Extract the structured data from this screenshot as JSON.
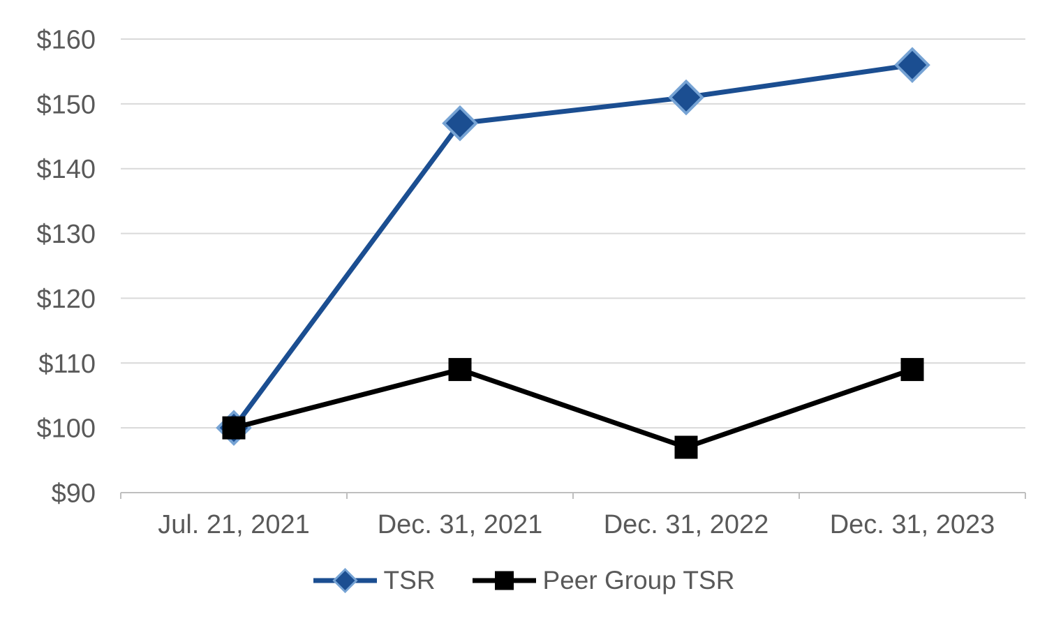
{
  "chart_data": {
    "type": "line",
    "categories": [
      "Jul. 21, 2021",
      "Dec. 31, 2021",
      "Dec. 31, 2022",
      "Dec. 31, 2023"
    ],
    "series": [
      {
        "name": "TSR",
        "values": [
          100,
          147,
          151,
          156
        ],
        "color": "#1B4E91",
        "marker": "diamond",
        "marker_stroke": "#76A3D4"
      },
      {
        "name": "Peer Group TSR",
        "values": [
          100,
          109,
          97,
          109
        ],
        "color": "#000000",
        "marker": "square",
        "marker_stroke": "#000000"
      }
    ],
    "y_axis": {
      "min": 90,
      "max": 160,
      "step": 10,
      "prefix": "$",
      "tick_labels": [
        "$90",
        "$100",
        "$110",
        "$120",
        "$130",
        "$140",
        "$150",
        "$160"
      ]
    },
    "x_axis": {
      "tick_labels": [
        "Jul. 21, 2021",
        "Dec. 31, 2021",
        "Dec. 31, 2022",
        "Dec. 31, 2023"
      ]
    },
    "grid": true,
    "legend_position": "bottom",
    "colors": {
      "gridline": "#D9D9D9",
      "axis_line": "#BFBFBF",
      "axis_text": "#595959",
      "background": "#FFFFFF"
    }
  }
}
